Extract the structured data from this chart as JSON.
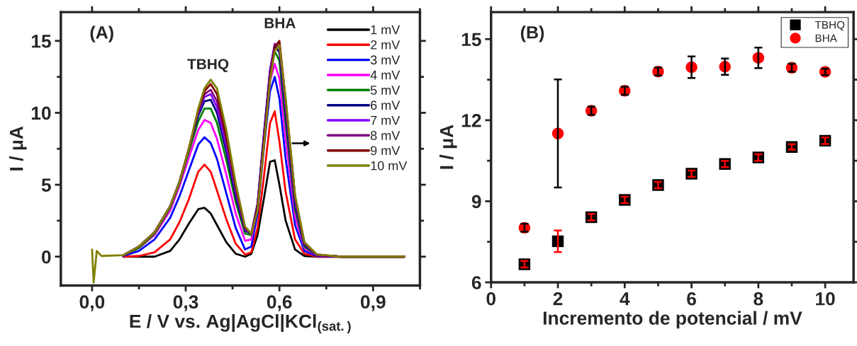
{
  "chart_data": [
    {
      "type": "line",
      "title": "(A)",
      "xlabel": "E / V vs. Ag|AgCl|KCl$_{(sat.)}$",
      "ylabel": "I / μA",
      "annotations": [
        "TBHQ",
        "BHA"
      ],
      "x": [
        0.0,
        0.005,
        0.015,
        0.03,
        0.1,
        0.15,
        0.2,
        0.25,
        0.28,
        0.31,
        0.34,
        0.36,
        0.38,
        0.4,
        0.43,
        0.46,
        0.49,
        0.51,
        0.53,
        0.55,
        0.57,
        0.585,
        0.6,
        0.62,
        0.65,
        0.68,
        0.72,
        0.8,
        1.0
      ],
      "xlim": [
        -0.1,
        1.05
      ],
      "ylim": [
        -2,
        17
      ],
      "xticks": [
        {
          "value": 0,
          "label": "0,0"
        },
        {
          "value": 0.15,
          "label": null
        },
        {
          "value": 0.3,
          "label": "0,3"
        },
        {
          "value": 0.45,
          "label": null
        },
        {
          "value": 0.6,
          "label": "0,6"
        },
        {
          "value": 0.75,
          "label": null
        },
        {
          "value": 0.9,
          "label": "0,9"
        },
        {
          "value": 1.05,
          "label": null
        }
      ],
      "yticks": [
        0,
        {
          "value": 2.5,
          "label": null
        },
        5,
        {
          "value": 7.5,
          "label": null
        },
        10,
        {
          "value": 12.5,
          "label": null
        },
        15
      ],
      "legend": "top right",
      "grid": false,
      "line_style": "solid",
      "marker": "none",
      "series": [
        {
          "name": "1 mV",
          "color": "#000000",
          "values": [
            null,
            null,
            null,
            null,
            0,
            0,
            0,
            0.4,
            1.2,
            2.3,
            3.3,
            3.4,
            3.0,
            2.2,
            1.0,
            0.2,
            0.0,
            0.2,
            1.5,
            4.0,
            6.6,
            6.7,
            5.0,
            2.5,
            0.5,
            0.05,
            0,
            0,
            0
          ]
        },
        {
          "name": "2 mV",
          "color": "#ff0000",
          "values": [
            null,
            null,
            null,
            null,
            0,
            0.05,
            0.3,
            1.2,
            2.4,
            4.0,
            5.9,
            6.4,
            5.9,
            4.6,
            2.6,
            0.9,
            0.15,
            0.3,
            2.0,
            5.5,
            9.3,
            10.1,
            8.0,
            4.5,
            1.2,
            0.2,
            0,
            0,
            0
          ]
        },
        {
          "name": "3 mV",
          "color": "#0000ff",
          "values": [
            null,
            null,
            null,
            null,
            0.05,
            0.4,
            1.2,
            2.7,
            4.2,
            6.0,
            7.8,
            8.3,
            7.9,
            6.8,
            4.4,
            2.0,
            0.5,
            0.7,
            3.0,
            7.5,
            11.5,
            12.5,
            11.0,
            6.8,
            2.2,
            0.4,
            0.05,
            0,
            0
          ]
        },
        {
          "name": "4 mV",
          "color": "#ff00ff",
          "values": [
            null,
            null,
            null,
            null,
            0.1,
            0.6,
            1.5,
            3.2,
            4.9,
            6.9,
            8.8,
            9.5,
            9.3,
            8.2,
            5.7,
            3.0,
            1.1,
            1.2,
            3.5,
            8.0,
            12.2,
            13.4,
            12.4,
            8.2,
            2.8,
            0.6,
            0.1,
            0,
            0
          ]
        },
        {
          "name": "5 mV",
          "color": "#008000",
          "values": [
            null,
            null,
            null,
            null,
            0.1,
            0.6,
            1.6,
            3.4,
            5.1,
            7.3,
            9.4,
            10.3,
            10.3,
            9.3,
            6.7,
            3.8,
            1.6,
            1.5,
            3.6,
            8.3,
            12.8,
            14.3,
            13.6,
            9.3,
            3.3,
            0.7,
            0.1,
            0,
            0
          ]
        },
        {
          "name": "6 mV",
          "color": "#000080",
          "values": [
            null,
            null,
            null,
            null,
            0.1,
            0.7,
            1.7,
            3.5,
            5.2,
            7.5,
            9.8,
            10.8,
            10.9,
            10.0,
            7.3,
            4.2,
            1.8,
            1.6,
            3.7,
            8.5,
            13.0,
            14.7,
            14.2,
            9.9,
            3.6,
            0.8,
            0.1,
            0,
            0
          ]
        },
        {
          "name": "7 mV",
          "color": "#8000ff",
          "values": [
            null,
            null,
            null,
            null,
            0.1,
            0.7,
            1.7,
            3.5,
            5.2,
            7.5,
            10.0,
            11.1,
            11.3,
            10.4,
            7.7,
            4.5,
            1.9,
            1.6,
            3.6,
            8.3,
            12.9,
            14.8,
            14.6,
            10.4,
            3.9,
            0.9,
            0.1,
            0,
            0
          ]
        },
        {
          "name": "8 mV",
          "color": "#800080",
          "values": [
            null,
            null,
            null,
            null,
            0.1,
            0.7,
            1.7,
            3.5,
            5.2,
            7.5,
            10.1,
            11.3,
            11.6,
            10.8,
            8.0,
            4.7,
            2.0,
            1.6,
            3.5,
            8.1,
            12.7,
            14.7,
            14.7,
            10.7,
            4.1,
            0.9,
            0.1,
            0,
            0
          ]
        },
        {
          "name": "9 mV",
          "color": "#800000",
          "values": [
            null,
            null,
            null,
            null,
            0.1,
            0.7,
            1.7,
            3.5,
            5.2,
            7.5,
            10.2,
            11.5,
            12.0,
            11.3,
            8.4,
            4.9,
            2.0,
            1.6,
            3.4,
            7.9,
            12.5,
            14.6,
            15.0,
            10.9,
            4.2,
            1.0,
            0.15,
            0,
            0
          ]
        },
        {
          "name": "10 mV",
          "color": "#808000",
          "values": [
            0.5,
            -1.8,
            0.4,
            0.05,
            0.1,
            0.7,
            1.7,
            3.5,
            5.2,
            7.5,
            10.3,
            11.7,
            12.3,
            11.7,
            8.8,
            5.1,
            2.1,
            1.6,
            3.2,
            7.6,
            12.2,
            14.3,
            14.7,
            11.0,
            4.3,
            1.0,
            0.15,
            0,
            0
          ]
        }
      ]
    },
    {
      "type": "scatter",
      "title": "(B)",
      "xlabel": "Incremento de potencial / mV",
      "ylabel": "I / μA",
      "x": [
        1,
        2,
        3,
        4,
        5,
        6,
        7,
        8,
        9,
        10
      ],
      "xlim": [
        0,
        10.85
      ],
      "ylim": [
        6,
        16
      ],
      "xticks": [
        0,
        {
          "value": 1,
          "label": null
        },
        2,
        {
          "value": 3,
          "label": null
        },
        4,
        {
          "value": 5,
          "label": null
        },
        6,
        {
          "value": 7,
          "label": null
        },
        8,
        {
          "value": 9,
          "label": null
        },
        10
      ],
      "yticks": [
        6,
        {
          "value": 7.5,
          "label": null
        },
        9,
        {
          "value": 10.5,
          "label": null
        },
        12,
        {
          "value": 13.5,
          "label": null
        },
        15
      ],
      "legend": "top right",
      "grid": false,
      "series": [
        {
          "name": "TBHQ",
          "color": "#000000",
          "marker": "square",
          "values": [
            6.67,
            7.52,
            8.41,
            9.05,
            9.6,
            10.02,
            10.38,
            10.62,
            11.01,
            11.24
          ],
          "errors": [
            0.12,
            0.4,
            0.12,
            0.12,
            0.12,
            0.12,
            0.12,
            0.12,
            0.1,
            0.12
          ]
        },
        {
          "name": "BHA",
          "color": "#ff0000",
          "marker": "circle",
          "values": [
            8.02,
            11.51,
            12.35,
            13.09,
            13.8,
            13.96,
            13.98,
            14.31,
            13.94,
            13.79
          ],
          "errors": [
            0.15,
            2.0,
            0.15,
            0.15,
            0.15,
            0.4,
            0.3,
            0.38,
            0.15,
            0.12
          ]
        }
      ]
    }
  ]
}
